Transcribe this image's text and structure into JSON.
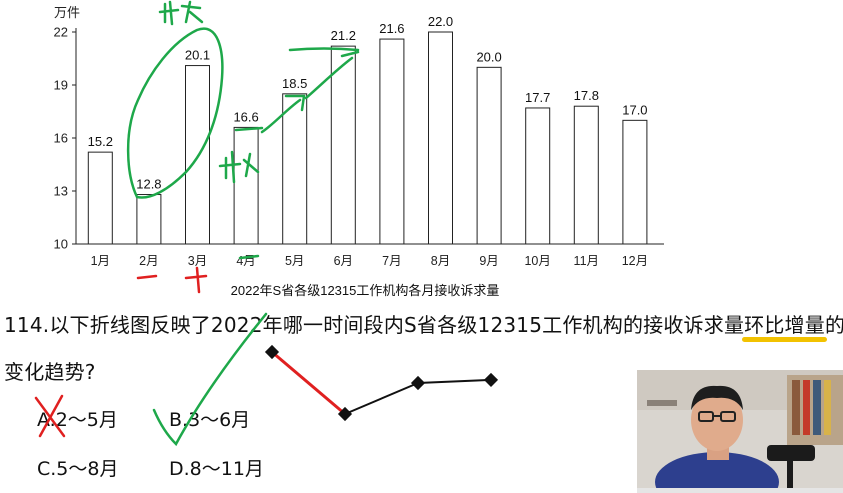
{
  "chart_data": {
    "type": "bar",
    "title": "2022年S省各级12315工作机构各月接收诉求量",
    "ylabel": "万件",
    "categories": [
      "1月",
      "2月",
      "3月",
      "4月",
      "5月",
      "6月",
      "7月",
      "8月",
      "9月",
      "10月",
      "11月",
      "12月"
    ],
    "values": [
      15.2,
      12.8,
      20.1,
      16.6,
      18.5,
      21.2,
      21.6,
      22.0,
      20.0,
      17.7,
      17.8,
      17.0
    ],
    "value_labels": [
      "15.2",
      "12.8",
      "20.1",
      "16.6",
      "18.5",
      "21.2",
      "21.6",
      "22.0",
      "20.0",
      "17.7",
      "17.8",
      "17.0"
    ],
    "ylim": [
      10,
      22
    ],
    "yticks": [
      10,
      13,
      16,
      19,
      22
    ],
    "grid": false,
    "bar_fill": "#ffffff",
    "bar_stroke": "#222222"
  },
  "question": {
    "number_and_text_before": "114.以下折线图反映了2022年哪一时间段内S省各级12315工作机构的接收诉求量",
    "highlighted": "环比增量",
    "text_after": "的",
    "line2": "变化趋势?"
  },
  "options": [
    {
      "id": "A",
      "label": "A.2～5月"
    },
    {
      "id": "B",
      "label": "B.3～6月"
    },
    {
      "id": "C",
      "label": "C.5～8月"
    },
    {
      "id": "D",
      "label": "D.8～11月"
    }
  ],
  "mini_line_chart": {
    "type": "line",
    "y": [
      3,
      1,
      2,
      2.1
    ],
    "colors": {
      "first_segment": "#e02020",
      "rest": "#111111"
    }
  },
  "annotations": {
    "handwritten_top_left": "最大",
    "handwritten_middle": "最小",
    "handwritten_plus": "十",
    "handwritten_minus": "一",
    "ink_green": "#1ea84a",
    "ink_red": "#e02020",
    "ink_yellow": "#f2c200"
  }
}
